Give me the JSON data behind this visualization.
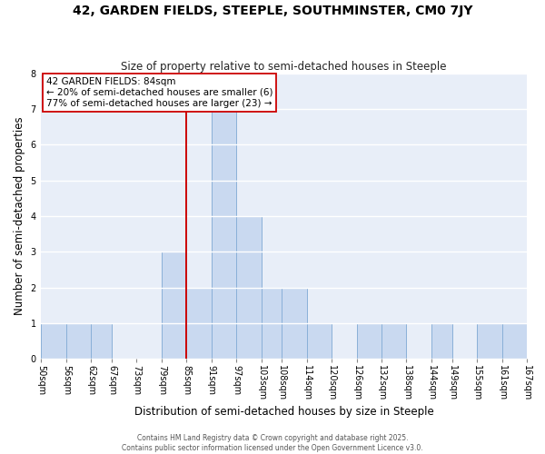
{
  "title": "42, GARDEN FIELDS, STEEPLE, SOUTHMINSTER, CM0 7JY",
  "subtitle": "Size of property relative to semi-detached houses in Steeple",
  "xlabel": "Distribution of semi-detached houses by size in Steeple",
  "ylabel": "Number of semi-detached properties",
  "bin_labels": [
    "50sqm",
    "56sqm",
    "62sqm",
    "67sqm",
    "73sqm",
    "79sqm",
    "85sqm",
    "91sqm",
    "97sqm",
    "103sqm",
    "108sqm",
    "114sqm",
    "120sqm",
    "126sqm",
    "132sqm",
    "138sqm",
    "144sqm",
    "149sqm",
    "155sqm",
    "161sqm",
    "167sqm"
  ],
  "bin_edges": [
    50,
    56,
    62,
    67,
    73,
    79,
    85,
    91,
    97,
    103,
    108,
    114,
    120,
    126,
    132,
    138,
    144,
    149,
    155,
    161,
    167
  ],
  "counts": [
    1,
    1,
    1,
    0,
    0,
    3,
    2,
    7,
    4,
    2,
    2,
    1,
    0,
    1,
    1,
    0,
    1,
    0,
    1,
    1
  ],
  "bar_color": "#c9d9f0",
  "bar_edgecolor": "#8ab0d8",
  "bar_linewidth": 0.7,
  "vline_x": 85,
  "vline_color": "#cc0000",
  "vline_linewidth": 1.4,
  "annotation_title": "42 GARDEN FIELDS: 84sqm",
  "annotation_line1": "← 20% of semi-detached houses are smaller (6)",
  "annotation_line2": "77% of semi-detached houses are larger (23) →",
  "annotation_box_edgecolor": "#cc0000",
  "annotation_box_facecolor": "white",
  "ylim": [
    0,
    8
  ],
  "yticks": [
    0,
    1,
    2,
    3,
    4,
    5,
    6,
    7,
    8
  ],
  "background_color": "#e8eef8",
  "grid_color": "white",
  "title_fontsize": 10,
  "subtitle_fontsize": 8.5,
  "label_fontsize": 8.5,
  "tick_fontsize": 7,
  "annotation_fontsize": 7.5,
  "footer_line1": "Contains HM Land Registry data © Crown copyright and database right 2025.",
  "footer_line2": "Contains public sector information licensed under the Open Government Licence v3.0."
}
